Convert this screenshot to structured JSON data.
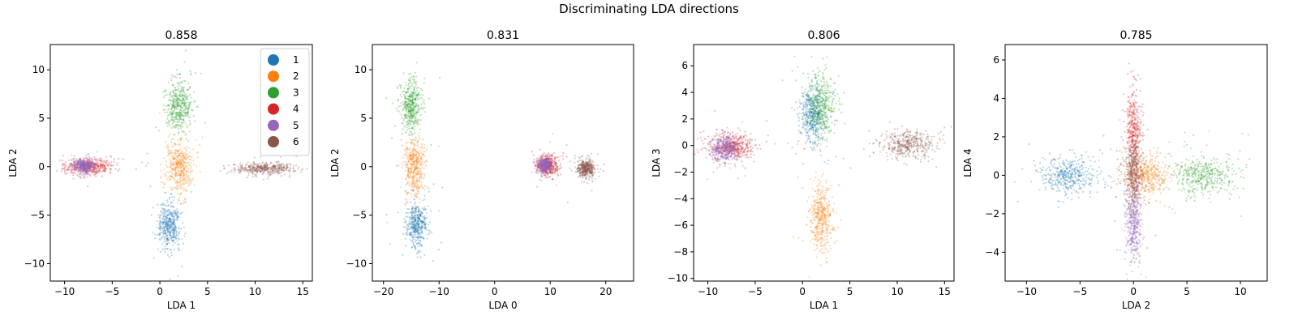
{
  "figure": {
    "suptitle": "Discriminating LDA directions"
  },
  "colors": {
    "1": "#1f77b4",
    "2": "#ff7f0e",
    "3": "#2ca02c",
    "4": "#d62728",
    "5": "#9467bd",
    "6": "#8c564b"
  },
  "chart_data": [
    {
      "type": "scatter",
      "title": "0.858",
      "xlabel": "LDA 1",
      "ylabel": "LDA 2",
      "xlim": [
        -11.5,
        16
      ],
      "ylim": [
        -11.8,
        12.6
      ],
      "xticks": [
        -10,
        -5,
        0,
        5,
        10,
        15
      ],
      "yticks": [
        -10,
        -5,
        0,
        5,
        10
      ],
      "legend": {
        "placement": "top-right",
        "entries": [
          "1",
          "2",
          "3",
          "4",
          "5",
          "6"
        ]
      },
      "clusters": [
        {
          "class": "1",
          "center": [
            1.0,
            -6.0
          ],
          "spread": [
            0.6,
            1.2
          ]
        },
        {
          "class": "2",
          "center": [
            2.0,
            0.0
          ],
          "spread": [
            0.7,
            1.4
          ]
        },
        {
          "class": "3",
          "center": [
            2.0,
            6.3
          ],
          "spread": [
            0.7,
            1.4
          ]
        },
        {
          "class": "4",
          "center": [
            -7.5,
            0.0
          ],
          "spread": [
            1.3,
            0.4
          ]
        },
        {
          "class": "5",
          "center": [
            -8.0,
            0.1
          ],
          "spread": [
            0.6,
            0.35
          ]
        },
        {
          "class": "6",
          "center": [
            11.0,
            -0.2
          ],
          "spread": [
            1.5,
            0.3
          ]
        }
      ]
    },
    {
      "type": "scatter",
      "title": "0.831",
      "xlabel": "LDA 0",
      "ylabel": "LDA 2",
      "xlim": [
        -22,
        25
      ],
      "ylim": [
        -11.8,
        12.6
      ],
      "xticks": [
        -20,
        -10,
        0,
        10,
        20
      ],
      "yticks": [
        -10,
        -5,
        0,
        5,
        10
      ],
      "clusters": [
        {
          "class": "1",
          "center": [
            -14.0,
            -6.0
          ],
          "spread": [
            0.9,
            1.2
          ]
        },
        {
          "class": "2",
          "center": [
            -14.5,
            0.0
          ],
          "spread": [
            0.9,
            1.4
          ]
        },
        {
          "class": "3",
          "center": [
            -15.0,
            6.3
          ],
          "spread": [
            0.9,
            1.4
          ]
        },
        {
          "class": "4",
          "center": [
            9.5,
            0.2
          ],
          "spread": [
            1.0,
            0.5
          ]
        },
        {
          "class": "5",
          "center": [
            9.0,
            0.1
          ],
          "spread": [
            0.6,
            0.4
          ]
        },
        {
          "class": "6",
          "center": [
            16.5,
            -0.2
          ],
          "spread": [
            0.8,
            0.45
          ]
        }
      ]
    },
    {
      "type": "scatter",
      "title": "0.806",
      "xlabel": "LDA 1",
      "ylabel": "LDA 3",
      "xlim": [
        -11.5,
        16
      ],
      "ylim": [
        -10.2,
        7.6
      ],
      "xticks": [
        -10,
        -5,
        0,
        5,
        10,
        15
      ],
      "yticks": [
        -10,
        -8,
        -6,
        -4,
        -2,
        0,
        2,
        4,
        6
      ],
      "clusters": [
        {
          "class": "1",
          "center": [
            1.0,
            2.3
          ],
          "spread": [
            0.6,
            1.0
          ]
        },
        {
          "class": "2",
          "center": [
            2.0,
            -5.3
          ],
          "spread": [
            0.6,
            1.2
          ]
        },
        {
          "class": "3",
          "center": [
            2.0,
            3.0
          ],
          "spread": [
            0.7,
            1.3
          ]
        },
        {
          "class": "4",
          "center": [
            -7.5,
            -0.1
          ],
          "spread": [
            1.2,
            0.5
          ]
        },
        {
          "class": "5",
          "center": [
            -8.2,
            -0.2
          ],
          "spread": [
            0.7,
            0.5
          ]
        },
        {
          "class": "6",
          "center": [
            11.0,
            0.1
          ],
          "spread": [
            1.4,
            0.5
          ]
        }
      ]
    },
    {
      "type": "scatter",
      "title": "0.785",
      "xlabel": "LDA 2",
      "ylabel": "LDA 4",
      "xlim": [
        -12,
        12.5
      ],
      "ylim": [
        -5.5,
        6.8
      ],
      "xticks": [
        -10,
        -5,
        0,
        5,
        10
      ],
      "yticks": [
        -4,
        -2,
        0,
        2,
        4,
        6
      ],
      "clusters": [
        {
          "class": "1",
          "center": [
            -6.0,
            0.0
          ],
          "spread": [
            1.4,
            0.45
          ]
        },
        {
          "class": "2",
          "center": [
            1.0,
            0.0
          ],
          "spread": [
            1.1,
            0.5
          ]
        },
        {
          "class": "3",
          "center": [
            6.5,
            0.0
          ],
          "spread": [
            1.6,
            0.5
          ]
        },
        {
          "class": "4",
          "center": [
            0.0,
            2.3
          ],
          "spread": [
            0.35,
            1.3
          ]
        },
        {
          "class": "5",
          "center": [
            0.0,
            -2.5
          ],
          "spread": [
            0.35,
            1.0
          ]
        },
        {
          "class": "6",
          "center": [
            0.0,
            0.0
          ],
          "spread": [
            0.4,
            0.9
          ]
        }
      ]
    }
  ]
}
